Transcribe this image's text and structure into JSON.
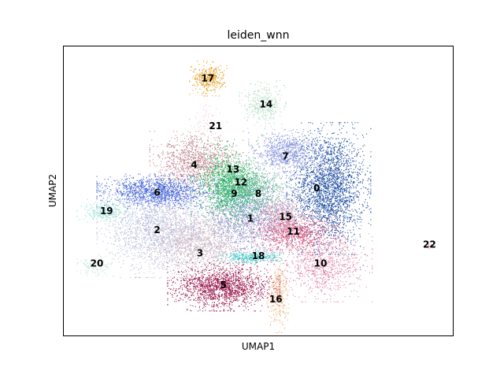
{
  "chart_data": {
    "type": "scatter",
    "title": "leiden_wnn",
    "xlabel": "UMAP1",
    "ylabel": "UMAP2",
    "xticks": [],
    "yticks": [],
    "grid": false,
    "legend": "on data",
    "clusters": [
      {
        "label": "0",
        "color": "#1f4ea1",
        "x": 0.68,
        "y": 0.51,
        "sx": 0.045,
        "sy": 0.095,
        "n": 2600
      },
      {
        "label": "1",
        "color": "#8b93c9",
        "x": 0.47,
        "y": 0.405,
        "sx": 0.06,
        "sy": 0.06,
        "n": 1700
      },
      {
        "label": "2",
        "color": "#b8bedc",
        "x": 0.24,
        "y": 0.37,
        "sx": 0.065,
        "sy": 0.07,
        "n": 2000
      },
      {
        "label": "3",
        "color": "#d1b8c2",
        "x": 0.35,
        "y": 0.32,
        "sx": 0.055,
        "sy": 0.05,
        "n": 1300
      },
      {
        "label": "4",
        "color": "#c0838e",
        "x": 0.34,
        "y": 0.6,
        "sx": 0.05,
        "sy": 0.045,
        "n": 1100
      },
      {
        "label": "5",
        "color": "#9c1b4f",
        "x": 0.41,
        "y": 0.17,
        "sx": 0.06,
        "sy": 0.035,
        "n": 1700
      },
      {
        "label": "6",
        "color": "#4a6ad8",
        "x": 0.24,
        "y": 0.5,
        "sx": 0.065,
        "sy": 0.025,
        "n": 1400
      },
      {
        "label": "7",
        "color": "#8a97dc",
        "x": 0.57,
        "y": 0.63,
        "sx": 0.04,
        "sy": 0.035,
        "n": 900
      },
      {
        "label": "8",
        "color": "#74b7a0",
        "x": 0.5,
        "y": 0.5,
        "sx": 0.035,
        "sy": 0.04,
        "n": 600
      },
      {
        "label": "9",
        "color": "#3cb6a2",
        "x": 0.44,
        "y": 0.5,
        "sx": 0.03,
        "sy": 0.04,
        "n": 500
      },
      {
        "label": "10",
        "color": "#e085a2",
        "x": 0.66,
        "y": 0.25,
        "sx": 0.055,
        "sy": 0.055,
        "n": 1000
      },
      {
        "label": "11",
        "color": "#d84f77",
        "x": 0.59,
        "y": 0.36,
        "sx": 0.05,
        "sy": 0.03,
        "n": 800
      },
      {
        "label": "12",
        "color": "#5dbb7c",
        "x": 0.45,
        "y": 0.53,
        "sx": 0.03,
        "sy": 0.035,
        "n": 500
      },
      {
        "label": "13",
        "color": "#1fae4e",
        "x": 0.41,
        "y": 0.53,
        "sx": 0.035,
        "sy": 0.06,
        "n": 800
      },
      {
        "label": "14",
        "color": "#b6dcc2",
        "x": 0.51,
        "y": 0.8,
        "sx": 0.025,
        "sy": 0.035,
        "n": 400
      },
      {
        "label": "15",
        "color": "#cf9bb6",
        "x": 0.56,
        "y": 0.42,
        "sx": 0.03,
        "sy": 0.03,
        "n": 400
      },
      {
        "label": "16",
        "color": "#f0b37a",
        "x": 0.55,
        "y": 0.13,
        "sx": 0.012,
        "sy": 0.05,
        "n": 300
      },
      {
        "label": "17",
        "color": "#e59a1a",
        "x": 0.37,
        "y": 0.89,
        "sx": 0.02,
        "sy": 0.025,
        "n": 350
      },
      {
        "label": "18",
        "color": "#36c8c2",
        "x": 0.48,
        "y": 0.27,
        "sx": 0.035,
        "sy": 0.01,
        "n": 300
      },
      {
        "label": "19",
        "color": "#8cdcd2",
        "x": 0.105,
        "y": 0.43,
        "sx": 0.03,
        "sy": 0.018,
        "n": 250
      },
      {
        "label": "20",
        "color": "#c6e7dc",
        "x": 0.075,
        "y": 0.24,
        "sx": 0.02,
        "sy": 0.015,
        "n": 120
      },
      {
        "label": "21",
        "color": "#f0c6d2",
        "x": 0.37,
        "y": 0.74,
        "sx": 0.02,
        "sy": 0.025,
        "n": 60
      },
      {
        "label": "22",
        "color": "#e58aa0",
        "x": 0.945,
        "y": 0.31,
        "sx": 0.005,
        "sy": 0.005,
        "n": 15
      }
    ],
    "label_positions": {
      "0": [
        0.65,
        0.51
      ],
      "1": [
        0.48,
        0.405
      ],
      "2": [
        0.24,
        0.365
      ],
      "3": [
        0.35,
        0.285
      ],
      "4": [
        0.335,
        0.59
      ],
      "5": [
        0.41,
        0.175
      ],
      "6": [
        0.24,
        0.495
      ],
      "7": [
        0.57,
        0.62
      ],
      "8": [
        0.5,
        0.49
      ],
      "9": [
        0.438,
        0.49
      ],
      "10": [
        0.66,
        0.25
      ],
      "11": [
        0.59,
        0.36
      ],
      "12": [
        0.455,
        0.53
      ],
      "13": [
        0.435,
        0.575
      ],
      "14": [
        0.52,
        0.8
      ],
      "15": [
        0.57,
        0.41
      ],
      "16": [
        0.545,
        0.125
      ],
      "17": [
        0.37,
        0.89
      ],
      "18": [
        0.5,
        0.275
      ],
      "19": [
        0.11,
        0.43
      ],
      "20": [
        0.085,
        0.25
      ],
      "21": [
        0.39,
        0.725
      ],
      "22": [
        0.94,
        0.315
      ]
    }
  }
}
